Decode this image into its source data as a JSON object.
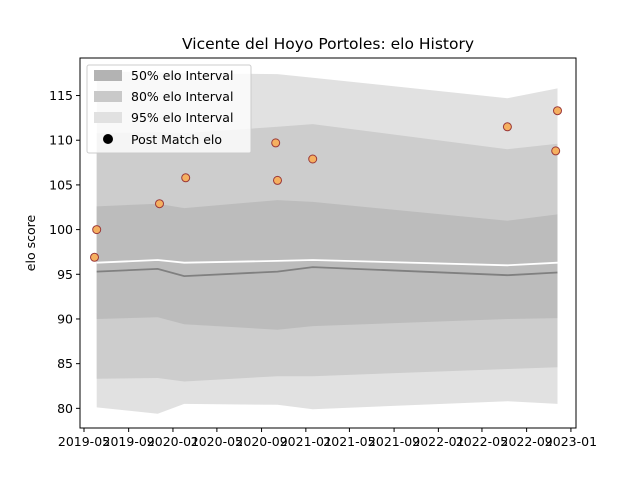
{
  "chart_data": {
    "type": "line",
    "title": "Vicente del Hoyo Portoles: elo History",
    "xlabel": "",
    "ylabel": "elo score",
    "x_ticks": [
      "2019-05",
      "2019-09",
      "2020-01",
      "2020-05",
      "2020-09",
      "2021-01",
      "2021-05",
      "2021-09",
      "2022-01",
      "2022-05",
      "2022-09",
      "2023-01"
    ],
    "y_ticks": [
      80,
      85,
      90,
      95,
      100,
      105,
      110,
      115
    ],
    "xlim": [
      "2019-04-20",
      "2023-01-15"
    ],
    "ylim": [
      77.8,
      119.2
    ],
    "dates": [
      "2019-06-05",
      "2019-11-20",
      "2020-02-01",
      "2020-10-15",
      "2021-01-20",
      "2022-07-10",
      "2022-11-25"
    ],
    "bands": {
      "p95_low": [
        80.1,
        79.4,
        80.5,
        80.4,
        79.9,
        80.8,
        80.5
      ],
      "p95_high": [
        117.7,
        117.6,
        117.5,
        117.4,
        117.0,
        114.7,
        115.8
      ],
      "p80_low": [
        83.3,
        83.4,
        83.0,
        83.6,
        83.6,
        84.4,
        84.6
      ],
      "p80_high": [
        110.8,
        110.9,
        110.8,
        111.5,
        111.8,
        109.0,
        109.6
      ],
      "p50_low": [
        90.0,
        90.2,
        89.4,
        88.8,
        89.2,
        90.0,
        90.1
      ],
      "p50_high": [
        102.6,
        102.9,
        102.4,
        103.3,
        103.1,
        101.0,
        101.7
      ]
    },
    "median": [
      95.3,
      95.6,
      94.8,
      95.3,
      95.8,
      94.9,
      95.2
    ],
    "expected": [
      96.3,
      96.6,
      96.3,
      96.5,
      96.6,
      96.0,
      96.3
    ],
    "points": {
      "dates": [
        "2019-05-30",
        "2019-06-05",
        "2019-11-25",
        "2020-02-05",
        "2020-10-10",
        "2020-10-15",
        "2021-01-20",
        "2022-07-10",
        "2022-11-20",
        "2022-11-25"
      ],
      "values": [
        96.9,
        100.0,
        102.9,
        105.8,
        109.7,
        105.5,
        107.9,
        111.5,
        108.8,
        113.3
      ]
    },
    "legend": {
      "placement": "top-left",
      "entries": [
        "50% elo Interval",
        "80% elo Interval",
        "95% elo Interval",
        "Post Match elo"
      ]
    },
    "colors": {
      "band95": "#e1e1e1",
      "band80": "#cdcdcd",
      "band50": "#bcbcbc",
      "median": "#808080",
      "expected": "#ffffff",
      "point_fill": "#f5b060",
      "point_edge": "#9b3838",
      "legend_marker": "#000000"
    },
    "grid": false
  }
}
